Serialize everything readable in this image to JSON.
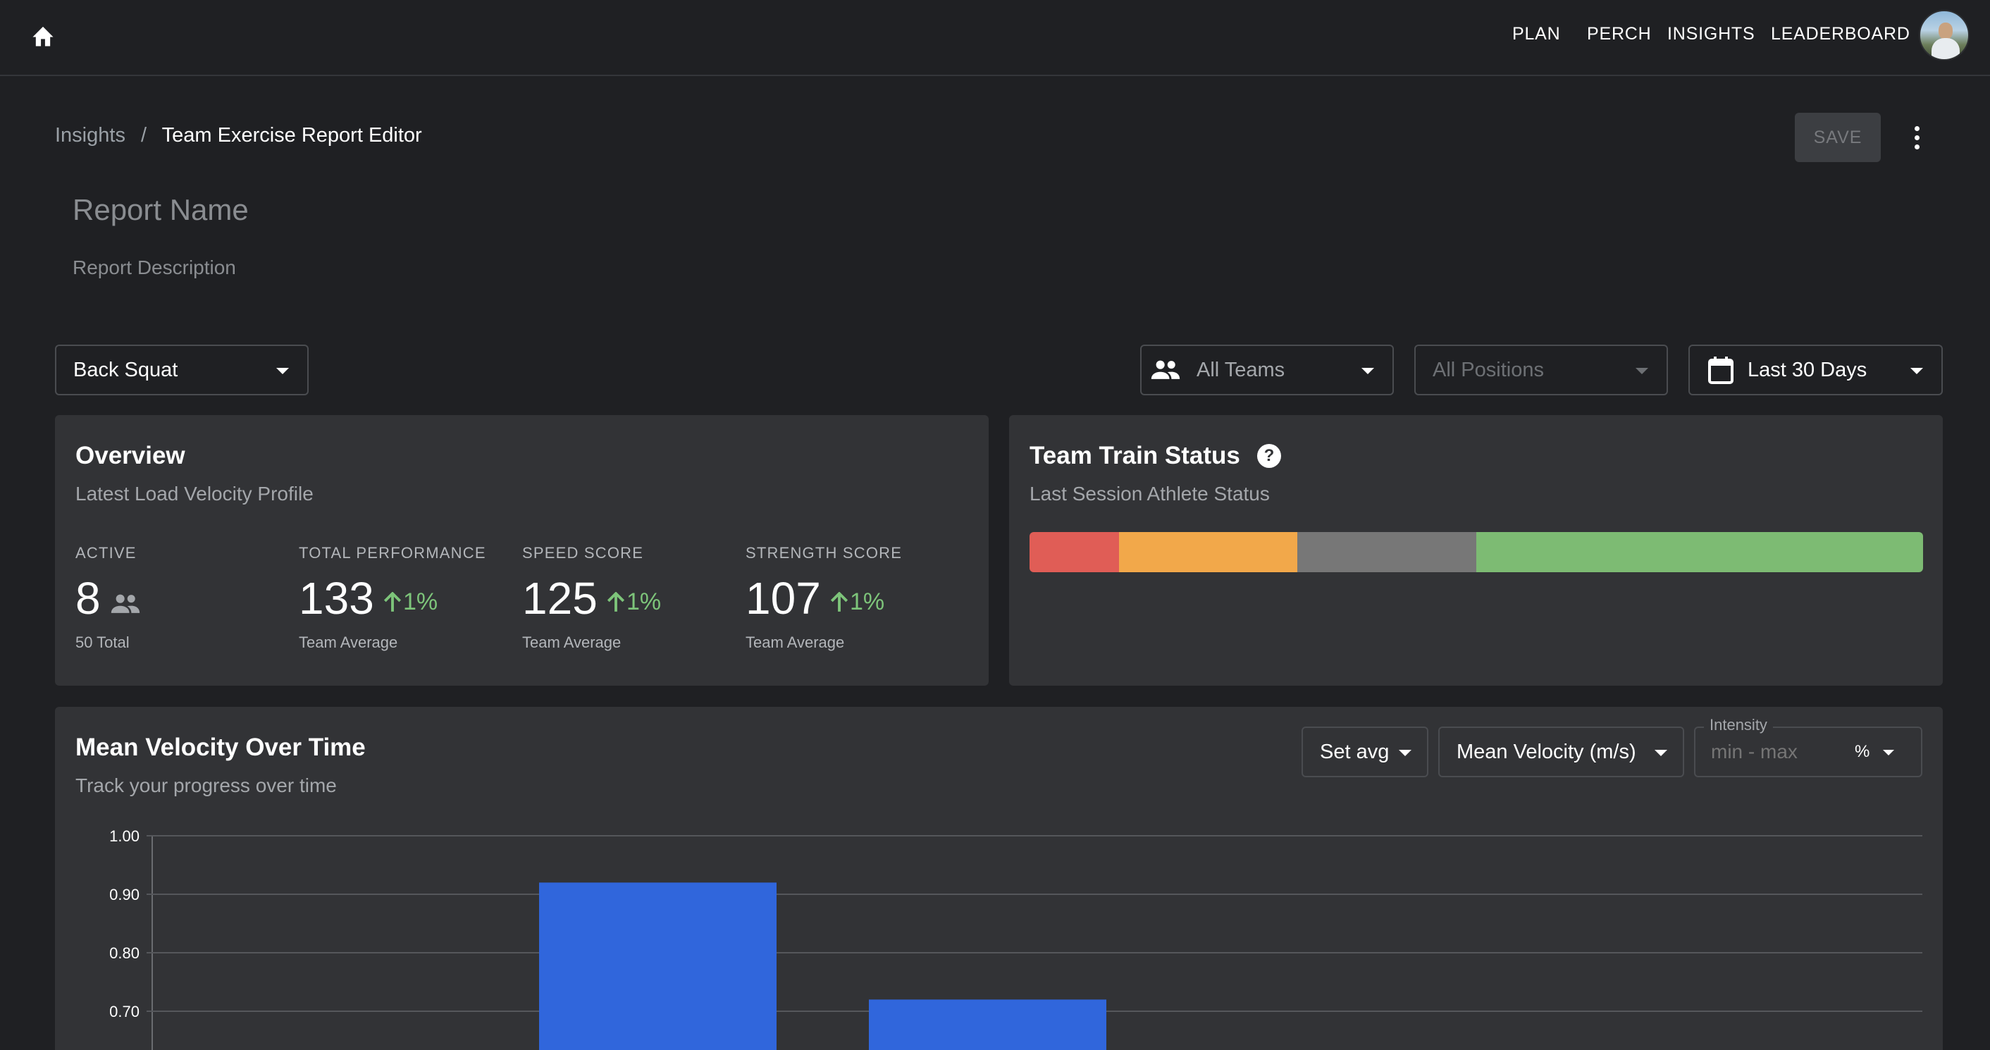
{
  "nav": {
    "items": [
      "PLAN",
      "PERCH",
      "INSIGHTS",
      "LEADERBOARD"
    ]
  },
  "breadcrumb": {
    "parent": "Insights",
    "separator": "/",
    "current": "Team Exercise Report Editor"
  },
  "toolbar": {
    "save_label": "SAVE"
  },
  "report": {
    "name_placeholder": "Report Name",
    "name_value": "",
    "description_placeholder": "Report Description",
    "description_value": ""
  },
  "filters": {
    "exercise": "Back Squat",
    "teams": "All Teams",
    "positions": "All Positions",
    "date_range": "Last 30 Days"
  },
  "overview": {
    "title": "Overview",
    "subtitle": "Latest Load Velocity Profile",
    "stats": [
      {
        "label": "ACTIVE",
        "value": "8",
        "change": "",
        "footer": "50 Total"
      },
      {
        "label": "TOTAL PERFORMANCE",
        "value": "133",
        "change": "1%",
        "footer": "Team Average"
      },
      {
        "label": "SPEED SCORE",
        "value": "125",
        "change": "1%",
        "footer": "Team Average"
      },
      {
        "label": "STRENGTH SCORE",
        "value": "107",
        "change": "1%",
        "footer": "Team Average"
      }
    ]
  },
  "train_status": {
    "title": "Team Train Status",
    "subtitle": "Last Session Athlete Status",
    "segments": [
      {
        "color": "#e05d56",
        "fraction": 0.1
      },
      {
        "color": "#f2a84a",
        "fraction": 0.2
      },
      {
        "color": "#777777",
        "fraction": 0.2
      },
      {
        "color": "#7dbb73",
        "fraction": 0.5
      }
    ]
  },
  "velocity_chart": {
    "title": "Mean Velocity Over Time",
    "subtitle": "Track your progress over time",
    "aggregation": "Set avg",
    "metric": "Mean Velocity (m/s)",
    "intensity_label": "Intensity",
    "intensity_placeholder": "min - max",
    "intensity_unit": "%"
  },
  "chart_data": {
    "type": "bar",
    "yticks": [
      "1.00",
      "0.90",
      "0.80",
      "0.70"
    ],
    "ylim": [
      0.6,
      1.0
    ],
    "values": [
      0.92,
      0.72
    ],
    "bar_color": "#3066dc",
    "grid": true
  },
  "colors": {
    "background": "#1f2023",
    "card": "#323336",
    "positive": "#7dc47a",
    "bar": "#3066dc"
  }
}
